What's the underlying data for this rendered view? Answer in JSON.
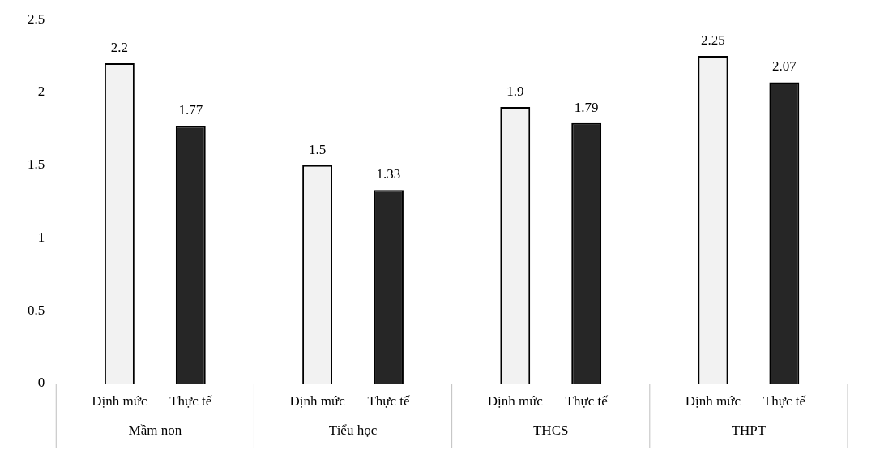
{
  "chart_data": {
    "type": "bar",
    "categories": [
      "Mầm non",
      "Tiểu học",
      "THCS",
      "THPT"
    ],
    "series": [
      {
        "name": "Định mức",
        "color": "#f2f2f2",
        "values": [
          2.2,
          1.5,
          1.9,
          2.25
        ]
      },
      {
        "name": "Thực tế",
        "color": "#262626",
        "values": [
          1.77,
          1.33,
          1.79,
          2.07
        ]
      }
    ],
    "ylim": [
      0,
      2.5
    ],
    "yticks": [
      0,
      0.5,
      1,
      1.5,
      2,
      2.5
    ],
    "grid": false,
    "legend": false,
    "data_labels": true
  }
}
